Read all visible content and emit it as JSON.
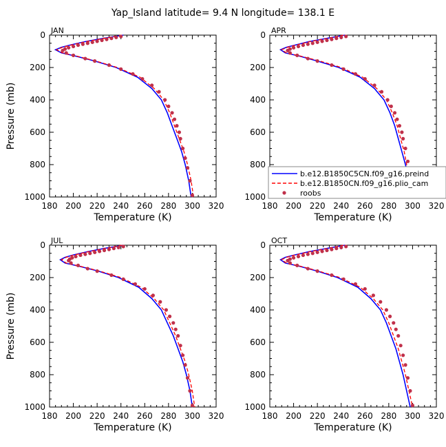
{
  "figure": {
    "title": "Yap_Island  latitude= 9.4 N longitude= 138.1 E"
  },
  "legend": {
    "placement": "right of APR panel, near bottom",
    "entries": [
      {
        "label": "b.e12.B1850C5CN.f09_g16.preind",
        "color": "#0000ff",
        "style": "solid"
      },
      {
        "label": "b.e12.B1850CN.f09_g16.plio_cam",
        "color": "#ff0000",
        "style": "dashed"
      },
      {
        "label": "roobs",
        "color": "#c0304a",
        "style": "dots"
      }
    ]
  },
  "chart_data": [
    {
      "type": "line",
      "title": "JAN",
      "xlabel": "Temperature (K)",
      "ylabel": "Pressure (mb)",
      "xlim": [
        180,
        320
      ],
      "ylim": [
        1000,
        0
      ],
      "xticks": [
        180,
        200,
        220,
        240,
        260,
        280,
        300,
        320
      ],
      "yticks": [
        0,
        200,
        400,
        600,
        800,
        1000
      ],
      "y_inverted": true,
      "series": [
        {
          "name": "b.e12.B1850C5CN.f09_g16.preind",
          "color": "#0000ff",
          "style": "solid",
          "x": [
            242,
            225,
            210,
            198,
            190,
            185,
            190,
            202,
            218,
            236,
            254,
            266,
            274,
            279,
            283,
            287,
            291,
            294,
            297,
            299
          ],
          "y": [
            0,
            20,
            40,
            60,
            75,
            90,
            110,
            130,
            160,
            200,
            260,
            330,
            400,
            480,
            560,
            640,
            720,
            800,
            900,
            1000
          ]
        },
        {
          "name": "b.e12.B1850CN.f09_g16.plio_cam",
          "color": "#ff0000",
          "style": "dashed",
          "x": [
            241,
            226,
            211,
            199,
            191,
            186,
            191,
            203,
            219,
            237,
            256,
            268,
            276,
            281,
            285,
            289,
            293,
            296,
            299,
            301
          ],
          "y": [
            0,
            20,
            40,
            60,
            75,
            90,
            110,
            130,
            160,
            200,
            260,
            330,
            400,
            480,
            560,
            640,
            720,
            800,
            900,
            1000
          ]
        },
        {
          "name": "roobs",
          "color": "#c0304a",
          "style": "dots",
          "x": [
            240,
            236,
            232,
            228,
            224,
            220,
            216,
            212,
            208,
            204,
            200,
            196,
            193,
            191,
            194,
            200,
            210,
            218,
            230,
            240,
            250,
            258,
            266,
            272,
            277,
            280,
            283,
            285,
            287,
            289,
            290,
            292,
            294,
            296,
            298,
            300
          ],
          "y": [
            8,
            14,
            20,
            26,
            32,
            38,
            44,
            50,
            56,
            62,
            70,
            78,
            86,
            95,
            110,
            125,
            145,
            160,
            185,
            210,
            240,
            270,
            310,
            350,
            400,
            440,
            480,
            520,
            560,
            600,
            640,
            700,
            760,
            820,
            900,
            990
          ]
        }
      ]
    },
    {
      "type": "line",
      "title": "APR",
      "xlabel": "Temperature (K)",
      "ylabel": "",
      "xlim": [
        180,
        320
      ],
      "ylim": [
        1000,
        0
      ],
      "xticks": [
        180,
        200,
        220,
        240,
        260,
        280,
        300,
        320
      ],
      "yticks": [
        0,
        200,
        400,
        600,
        800,
        1000
      ],
      "y_inverted": true,
      "series": [
        {
          "name": "b.e12.B1850C5CN.f09_g16.preind",
          "color": "#0000ff",
          "style": "solid",
          "x": [
            243,
            228,
            213,
            202,
            194,
            189,
            193,
            205,
            220,
            238,
            256,
            268,
            276,
            281,
            285,
            288,
            291,
            294,
            297,
            300
          ],
          "y": [
            0,
            20,
            40,
            60,
            75,
            90,
            110,
            130,
            160,
            200,
            260,
            330,
            400,
            480,
            560,
            640,
            720,
            800,
            900,
            1000
          ]
        },
        {
          "name": "b.e12.B1850CN.f09_g16.plio_cam",
          "color": "#ff0000",
          "style": "dashed",
          "x": [
            242,
            229,
            214,
            203,
            195,
            190,
            194,
            206,
            222,
            240,
            258,
            270,
            278,
            283,
            287,
            290,
            293,
            295,
            298,
            301
          ],
          "y": [
            0,
            20,
            40,
            60,
            75,
            90,
            110,
            130,
            160,
            200,
            260,
            330,
            400,
            480,
            560,
            640,
            720,
            800,
            900,
            1000
          ]
        },
        {
          "name": "roobs",
          "color": "#c0304a",
          "style": "dots",
          "x": [
            244,
            240,
            236,
            232,
            228,
            224,
            220,
            216,
            212,
            208,
            204,
            200,
            197,
            195,
            197,
            203,
            212,
            220,
            232,
            242,
            252,
            260,
            268,
            274,
            279,
            282,
            285,
            287,
            289,
            291,
            292,
            294,
            296,
            298,
            300
          ],
          "y": [
            8,
            14,
            20,
            26,
            32,
            38,
            44,
            50,
            56,
            62,
            70,
            78,
            86,
            95,
            110,
            125,
            145,
            160,
            185,
            210,
            240,
            270,
            310,
            350,
            400,
            440,
            480,
            520,
            560,
            600,
            640,
            700,
            780,
            880,
            990
          ]
        }
      ]
    },
    {
      "type": "line",
      "title": "JUL",
      "xlabel": "Temperature (K)",
      "ylabel": "Pressure (mb)",
      "xlim": [
        180,
        320
      ],
      "ylim": [
        1000,
        0
      ],
      "xticks": [
        180,
        200,
        220,
        240,
        260,
        280,
        300,
        320
      ],
      "yticks": [
        0,
        200,
        400,
        600,
        800,
        1000
      ],
      "y_inverted": true,
      "series": [
        {
          "name": "b.e12.B1850C5CN.f09_g16.preind",
          "color": "#0000ff",
          "style": "solid",
          "x": [
            242,
            226,
            212,
            200,
            193,
            189,
            193,
            205,
            221,
            238,
            255,
            266,
            274,
            279,
            284,
            288,
            292,
            295,
            298,
            300
          ],
          "y": [
            0,
            20,
            40,
            60,
            75,
            90,
            110,
            130,
            160,
            200,
            260,
            330,
            400,
            480,
            560,
            640,
            720,
            800,
            900,
            1000
          ]
        },
        {
          "name": "b.e12.B1850CN.f09_g16.plio_cam",
          "color": "#ff0000",
          "style": "dashed",
          "x": [
            241,
            227,
            213,
            201,
            194,
            190,
            194,
            206,
            222,
            240,
            257,
            268,
            276,
            281,
            286,
            290,
            294,
            297,
            300,
            302
          ],
          "y": [
            0,
            20,
            40,
            60,
            75,
            90,
            110,
            130,
            160,
            200,
            260,
            330,
            400,
            480,
            560,
            640,
            720,
            800,
            900,
            1000
          ]
        },
        {
          "name": "roobs",
          "color": "#c0304a",
          "style": "dots",
          "x": [
            242,
            238,
            234,
            230,
            226,
            222,
            218,
            214,
            210,
            206,
            202,
            199,
            197,
            196,
            198,
            204,
            212,
            220,
            232,
            242,
            252,
            260,
            267,
            273,
            278,
            281,
            284,
            286,
            288,
            290,
            292,
            294,
            296,
            298,
            300
          ],
          "y": [
            8,
            14,
            20,
            26,
            32,
            38,
            44,
            50,
            56,
            62,
            70,
            78,
            86,
            95,
            110,
            125,
            145,
            160,
            185,
            210,
            240,
            270,
            310,
            350,
            400,
            440,
            480,
            520,
            560,
            620,
            680,
            740,
            820,
            900,
            990
          ]
        }
      ]
    },
    {
      "type": "line",
      "title": "OCT",
      "xlabel": "Temperature (K)",
      "ylabel": "",
      "xlim": [
        180,
        320
      ],
      "ylim": [
        1000,
        0
      ],
      "xticks": [
        180,
        200,
        220,
        240,
        260,
        280,
        300,
        320
      ],
      "yticks": [
        0,
        200,
        400,
        600,
        800,
        1000
      ],
      "y_inverted": true,
      "series": [
        {
          "name": "b.e12.B1850C5CN.f09_g16.preind",
          "color": "#0000ff",
          "style": "solid",
          "x": [
            243,
            228,
            213,
            201,
            193,
            189,
            193,
            205,
            220,
            237,
            254,
            265,
            273,
            278,
            282,
            286,
            289,
            292,
            295,
            298
          ],
          "y": [
            0,
            20,
            40,
            60,
            75,
            90,
            110,
            130,
            160,
            200,
            260,
            330,
            400,
            480,
            560,
            640,
            720,
            800,
            900,
            1000
          ]
        },
        {
          "name": "b.e12.B1850CN.f09_g16.plio_cam",
          "color": "#ff0000",
          "style": "dashed",
          "x": [
            242,
            229,
            214,
            202,
            194,
            190,
            194,
            206,
            221,
            239,
            256,
            267,
            275,
            280,
            284,
            288,
            291,
            294,
            297,
            300
          ],
          "y": [
            0,
            20,
            40,
            60,
            75,
            90,
            110,
            130,
            160,
            200,
            260,
            330,
            400,
            480,
            560,
            640,
            720,
            800,
            900,
            1000
          ]
        },
        {
          "name": "roobs",
          "color": "#c0304a",
          "style": "dots",
          "x": [
            244,
            240,
            236,
            232,
            228,
            224,
            220,
            216,
            212,
            208,
            204,
            200,
            197,
            195,
            197,
            203,
            212,
            220,
            232,
            242,
            252,
            260,
            267,
            273,
            278,
            281,
            284,
            286,
            288,
            290,
            292,
            294,
            296,
            298,
            300
          ],
          "y": [
            8,
            14,
            20,
            26,
            32,
            38,
            44,
            50,
            56,
            62,
            70,
            78,
            86,
            95,
            110,
            125,
            145,
            160,
            185,
            210,
            240,
            270,
            310,
            350,
            400,
            440,
            480,
            520,
            560,
            620,
            680,
            740,
            820,
            900,
            990
          ]
        }
      ]
    }
  ]
}
